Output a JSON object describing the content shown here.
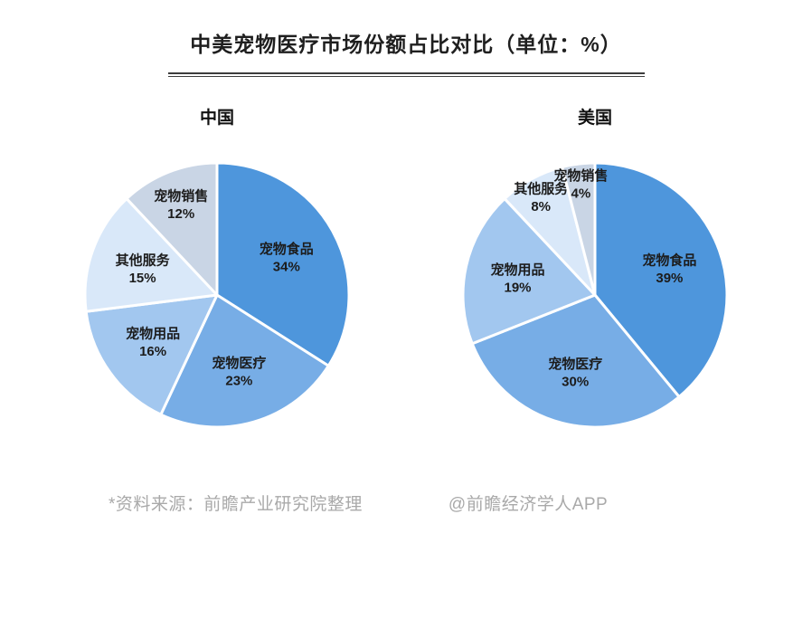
{
  "title": "中美宠物医疗市场份额占比对比（单位：%）",
  "footer": {
    "source": "*资料来源：前瞻产业研究院整理",
    "watermark": "@前瞻经济学人APP"
  },
  "palette": {
    "pet_food": "#4e96dc",
    "pet_medical": "#77ade6",
    "pet_supplies": "#a2c7ef",
    "other_services": "#d9e8f9",
    "pet_sales": "#c9d5e5"
  },
  "chart_data": [
    {
      "type": "pie",
      "title": "中国",
      "unit": "%",
      "start_angle_deg": 0,
      "direction": "clockwise",
      "labels": [
        "宠物食品",
        "宠物医疗",
        "宠物用品",
        "其他服务",
        "宠物销售"
      ],
      "values": [
        34,
        23,
        16,
        15,
        12
      ],
      "value_labels": [
        "34%",
        "23%",
        "16%",
        "15%",
        "12%"
      ],
      "colors": [
        "#4e96dc",
        "#77ade6",
        "#a2c7ef",
        "#d9e8f9",
        "#c9d5e5"
      ],
      "legend": "none",
      "label_position": "inside"
    },
    {
      "type": "pie",
      "title": "美国",
      "unit": "%",
      "start_angle_deg": 0,
      "direction": "clockwise",
      "labels": [
        "宠物食品",
        "宠物医疗",
        "宠物用品",
        "其他服务",
        "宠物销售"
      ],
      "values": [
        39,
        30,
        19,
        8,
        4
      ],
      "value_labels": [
        "39%",
        "30%",
        "19%",
        "8%",
        "4%"
      ],
      "colors": [
        "#4e96dc",
        "#77ade6",
        "#a2c7ef",
        "#d9e8f9",
        "#c9d5e5"
      ],
      "legend": "none",
      "label_position": "inside"
    }
  ]
}
